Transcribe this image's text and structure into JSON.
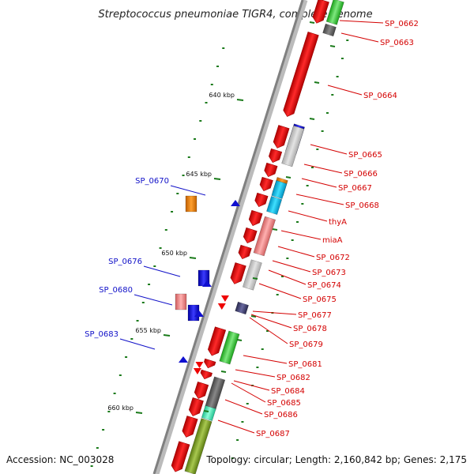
{
  "title": "Streptococcus pneumoniae TIGR4, complete genome",
  "footer": {
    "accession": "Accession: NC_003028",
    "summary": "Topology: circular; Length: 2,160,842 bp; Genes: 2,175"
  },
  "colors": {
    "forward": "#ee0000",
    "reverse_label": "#1010c8",
    "tick": "#1a7a1a",
    "backbone": "#808080"
  },
  "ticks": [
    "640 kbp",
    "645 kbp",
    "650 kbp",
    "655 kbp",
    "660 kbp"
  ],
  "right_genes": [
    "SP_0662",
    "SP_0663",
    "SP_0664",
    "SP_0665",
    "SP_0666",
    "SP_0667",
    "SP_0668",
    "thyA",
    "miaA",
    "SP_0672",
    "SP_0673",
    "SP_0674",
    "SP_0675",
    "SP_0677",
    "SP_0678",
    "SP_0679",
    "SP_0681",
    "SP_0682",
    "SP_0684",
    "SP_0685",
    "SP_0686",
    "SP_0687"
  ],
  "left_genes": [
    "SP_0670",
    "SP_0676",
    "SP_0680",
    "SP_0683"
  ]
}
